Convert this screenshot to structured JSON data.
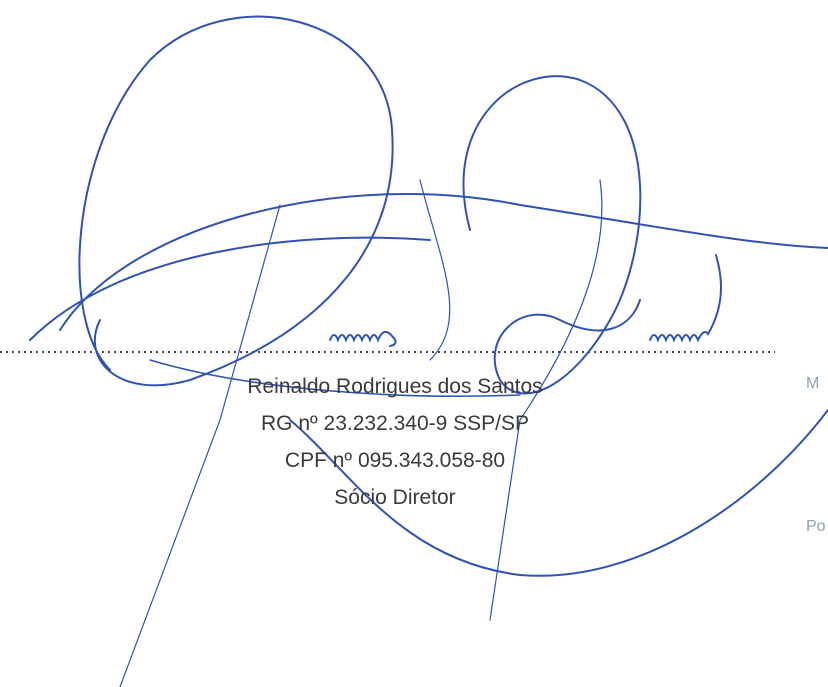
{
  "signatory": {
    "name": "Reinaldo Rodrigues dos Santos",
    "rg": "RG nº 23.232.340-9 SSP/SP",
    "cpf": "CPF nº 095.343.058-80",
    "role": "Sócio Diretor"
  },
  "stamp": {
    "lines": [
      "M",
      "Po"
    ]
  }
}
